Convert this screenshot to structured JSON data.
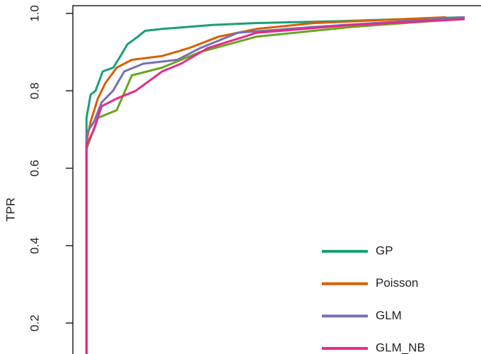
{
  "chart_data": {
    "type": "line",
    "ylabel": "TPR",
    "xlim": [
      -0.036,
      1.043
    ],
    "ylim": [
      0.12,
      1.02
    ],
    "yticks": [
      {
        "value": 0.2,
        "label": "0.2"
      },
      {
        "value": 0.4,
        "label": "0.4"
      },
      {
        "value": 0.6,
        "label": "0.6"
      },
      {
        "value": 0.8,
        "label": "0.8"
      },
      {
        "value": 1.0,
        "label": "1.0"
      }
    ],
    "legend": "bottom-right",
    "series": [
      {
        "name": "GP",
        "color": "#1b9e77",
        "x": [
          0,
          0,
          0.011,
          0.024,
          0.043,
          0.071,
          0.09,
          0.108,
          0.136,
          0.155,
          0.202,
          0.333,
          0.445,
          0.669,
          0.996
        ],
        "values": [
          0.12,
          0.73,
          0.79,
          0.8,
          0.85,
          0.86,
          0.89,
          0.92,
          0.94,
          0.955,
          0.96,
          0.97,
          0.975,
          0.98,
          0.99
        ]
      },
      {
        "name": "Poisson",
        "color": "#d95f02",
        "x": [
          0,
          0,
          0.011,
          0.03,
          0.05,
          0.08,
          0.12,
          0.2,
          0.27,
          0.35,
          0.45,
          0.6,
          0.95
        ],
        "values": [
          0.12,
          0.67,
          0.72,
          0.78,
          0.82,
          0.86,
          0.88,
          0.89,
          0.91,
          0.94,
          0.96,
          0.975,
          0.99
        ]
      },
      {
        "name": "GLM",
        "color": "#7570b3",
        "x": [
          0,
          0,
          0.02,
          0.04,
          0.07,
          0.1,
          0.15,
          0.24,
          0.3,
          0.4,
          0.6,
          1.0
        ],
        "values": [
          0.12,
          0.69,
          0.72,
          0.77,
          0.8,
          0.85,
          0.87,
          0.88,
          0.91,
          0.95,
          0.965,
          0.99
        ]
      },
      {
        "color": "#66a61e",
        "x": [
          0,
          0,
          0.03,
          0.08,
          0.12,
          0.2,
          0.3,
          0.45,
          0.7,
          0.98
        ],
        "values": [
          0.12,
          0.65,
          0.73,
          0.75,
          0.84,
          0.86,
          0.9,
          0.94,
          0.965,
          0.985
        ]
      },
      {
        "name": "GLM_NB",
        "color": "#e7298a",
        "x": [
          0,
          0,
          0.02,
          0.04,
          0.08,
          0.13,
          0.2,
          0.25,
          0.32,
          0.45,
          0.7,
          1.0
        ],
        "values": [
          0.12,
          0.66,
          0.7,
          0.76,
          0.78,
          0.8,
          0.85,
          0.87,
          0.91,
          0.95,
          0.97,
          0.985
        ]
      }
    ]
  }
}
